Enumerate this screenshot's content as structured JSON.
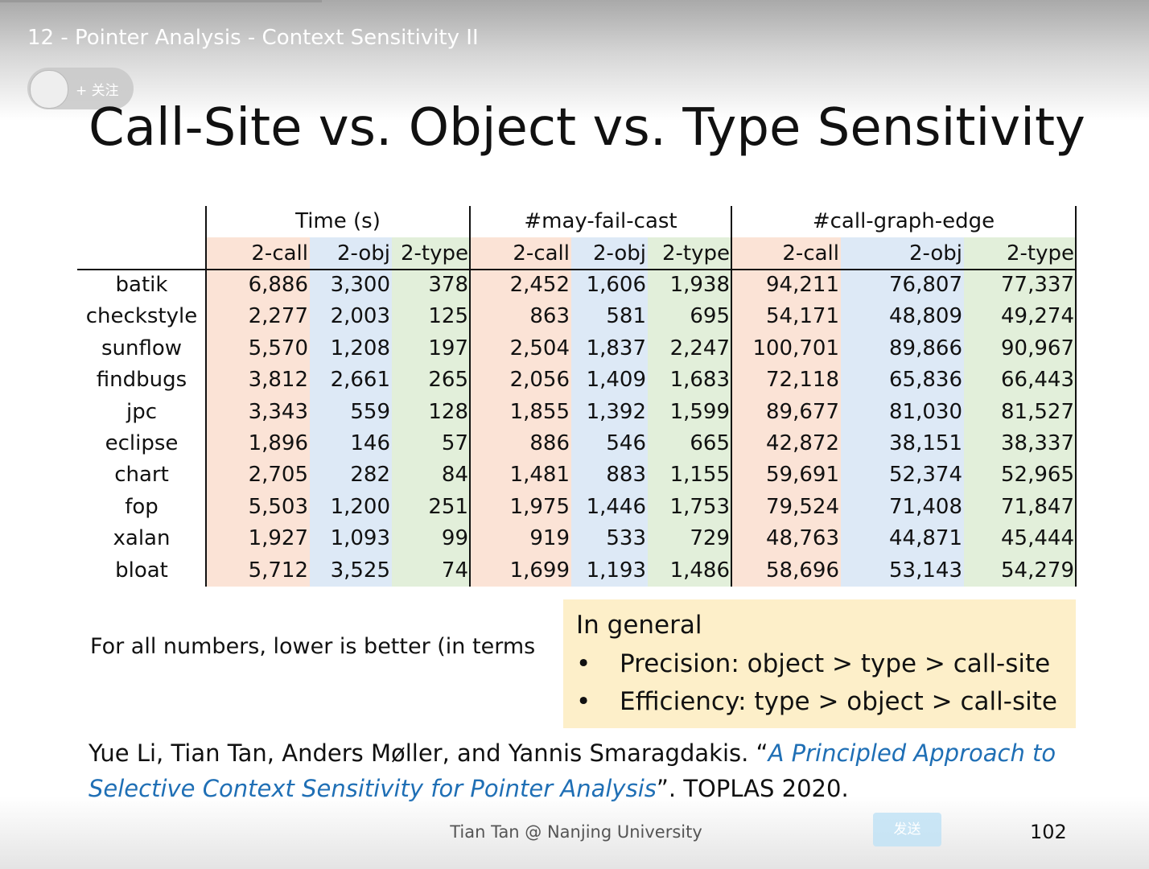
{
  "video_title": "12 - Pointer Analysis - Context Sensitivity II",
  "follow_button": "+ 关注",
  "slide": {
    "title": "Call-Site vs. Object vs. Type Sensitivity",
    "table": {
      "groups": [
        {
          "label": "Time (s)",
          "columns": [
            "2-call",
            "2-obj",
            "2-type"
          ]
        },
        {
          "label": "#may-fail-cast",
          "columns": [
            "2-call",
            "2-obj",
            "2-type"
          ]
        },
        {
          "label": "#call-graph-edge",
          "columns": [
            "2-call",
            "2-obj",
            "2-type"
          ]
        }
      ],
      "rows": [
        {
          "name": "batik",
          "values": [
            "6,886",
            "3,300",
            "378",
            "2,452",
            "1,606",
            "1,938",
            "94,211",
            "76,807",
            "77,337"
          ]
        },
        {
          "name": "checkstyle",
          "values": [
            "2,277",
            "2,003",
            "125",
            "863",
            "581",
            "695",
            "54,171",
            "48,809",
            "49,274"
          ]
        },
        {
          "name": "sunflow",
          "values": [
            "5,570",
            "1,208",
            "197",
            "2,504",
            "1,837",
            "2,247",
            "100,701",
            "89,866",
            "90,967"
          ]
        },
        {
          "name": "findbugs",
          "values": [
            "3,812",
            "2,661",
            "265",
            "2,056",
            "1,409",
            "1,683",
            "72,118",
            "65,836",
            "66,443"
          ]
        },
        {
          "name": "jpc",
          "values": [
            "3,343",
            "559",
            "128",
            "1,855",
            "1,392",
            "1,599",
            "89,677",
            "81,030",
            "81,527"
          ]
        },
        {
          "name": "eclipse",
          "values": [
            "1,896",
            "146",
            "57",
            "886",
            "546",
            "665",
            "42,872",
            "38,151",
            "38,337"
          ]
        },
        {
          "name": "chart",
          "values": [
            "2,705",
            "282",
            "84",
            "1,481",
            "883",
            "1,155",
            "59,691",
            "52,374",
            "52,965"
          ]
        },
        {
          "name": "fop",
          "values": [
            "5,503",
            "1,200",
            "251",
            "1,975",
            "1,446",
            "1,753",
            "79,524",
            "71,408",
            "71,847"
          ]
        },
        {
          "name": "xalan",
          "values": [
            "1,927",
            "1,093",
            "99",
            "919",
            "533",
            "729",
            "48,763",
            "44,871",
            "45,444"
          ]
        },
        {
          "name": "bloat",
          "values": [
            "5,712",
            "3,525",
            "74",
            "1,699",
            "1,193",
            "1,486",
            "58,696",
            "53,143",
            "54,279"
          ]
        }
      ]
    },
    "note": "For all numbers, lower is better (in terms",
    "callout": {
      "heading": "In general",
      "bullets": [
        "Precision: object > type > call-site",
        "Efficiency: type > object > call-site"
      ]
    },
    "citation": {
      "authors": "Yue Li, Tian Tan, Anders Møller, and Yannis Smaragdakis. “",
      "paper": "A Principled Approach to Selective Context Sensitivity for Pointer Analysis",
      "venue": "”. TOPLAS 2020."
    },
    "footer": "Tian Tan @ Nanjing University",
    "page_number": "102"
  },
  "send_button": "发送"
}
